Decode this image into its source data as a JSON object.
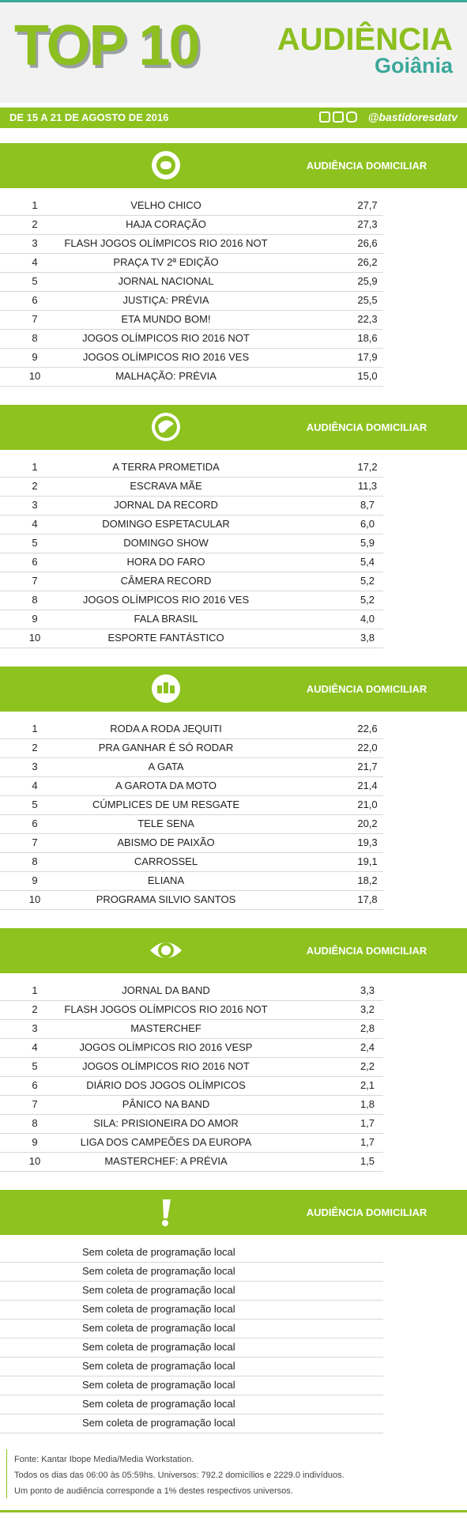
{
  "header": {
    "title": "TOP 10",
    "brand": "AUDIÊNCIA",
    "city": "Goiânia",
    "period": "DE 15 A 21 DE AGOSTO DE 2016",
    "handle": "@bastidoresdatv"
  },
  "sections": [
    {
      "heading": "AUDIÊNCIA DOMICILIAR",
      "rows": [
        [
          "1",
          "VELHO CHICO",
          "27,7"
        ],
        [
          "2",
          "HAJA CORAÇÃO",
          "27,3"
        ],
        [
          "3",
          "FLASH JOGOS OLÍMPICOS RIO 2016 NOT",
          "26,6"
        ],
        [
          "4",
          "PRAÇA TV 2ª EDIÇÃO",
          "26,2"
        ],
        [
          "5",
          "JORNAL NACIONAL",
          "25,9"
        ],
        [
          "6",
          "JUSTIÇA: PRÉVIA",
          "25,5"
        ],
        [
          "7",
          "ETA MUNDO BOM!",
          "22,3"
        ],
        [
          "8",
          "JOGOS OLÍMPICOS RIO 2016 NOT",
          "18,6"
        ],
        [
          "9",
          "JOGOS OLÍMPICOS RIO 2016 VES",
          "17,9"
        ],
        [
          "10",
          "MALHAÇÃO: PRÉVIA",
          "15,0"
        ]
      ]
    },
    {
      "heading": "AUDIÊNCIA DOMICILIAR",
      "rows": [
        [
          "1",
          "A TERRA PROMETIDA",
          "17,2"
        ],
        [
          "2",
          "ESCRAVA MÃE",
          "11,3"
        ],
        [
          "3",
          "JORNAL DA RECORD",
          "8,7"
        ],
        [
          "4",
          "DOMINGO ESPETACULAR",
          "6,0"
        ],
        [
          "5",
          "DOMINGO SHOW",
          "5,9"
        ],
        [
          "6",
          "HORA DO FARO",
          "5,4"
        ],
        [
          "7",
          "CÂMERA RECORD",
          "5,2"
        ],
        [
          "8",
          "JOGOS OLÍMPICOS RIO 2016 VES",
          "5,2"
        ],
        [
          "9",
          "FALA BRASIL",
          "4,0"
        ],
        [
          "10",
          "ESPORTE FANTÁSTICO",
          "3,8"
        ]
      ]
    },
    {
      "heading": "AUDIÊNCIA DOMICILIAR",
      "rows": [
        [
          "1",
          "RODA A RODA JEQUITI",
          "22,6"
        ],
        [
          "2",
          "PRA GANHAR É SÓ RODAR",
          "22,0"
        ],
        [
          "3",
          "A GATA",
          "21,7"
        ],
        [
          "4",
          "A GAROTA DA MOTO",
          "21,4"
        ],
        [
          "5",
          "CÚMPLICES DE UM RESGATE",
          "21,0"
        ],
        [
          "6",
          "TELE SENA",
          "20,2"
        ],
        [
          "7",
          "ABISMO DE PAIXÃO",
          "19,3"
        ],
        [
          "8",
          "CARROSSEL",
          "19,1"
        ],
        [
          "9",
          "ELIANA",
          "18,2"
        ],
        [
          "10",
          "PROGRAMA SILVIO SANTOS",
          "17,8"
        ]
      ]
    },
    {
      "heading": "AUDIÊNCIA DOMICILIAR",
      "rows": [
        [
          "1",
          "JORNAL DA BAND",
          "3,3"
        ],
        [
          "2",
          "FLASH JOGOS OLÍMPICOS RIO 2016 NOT",
          "3,2"
        ],
        [
          "3",
          "MASTERCHEF",
          "2,8"
        ],
        [
          "4",
          "JOGOS OLÍMPICOS RIO 2016 VESP",
          "2,4"
        ],
        [
          "5",
          "JOGOS OLÍMPICOS RIO 2016 NOT",
          "2,2"
        ],
        [
          "6",
          "DIÁRIO DOS JOGOS OLÍMPICOS",
          "2,1"
        ],
        [
          "7",
          "PÂNICO NA BAND",
          "1,8"
        ],
        [
          "8",
          "SILA: PRISIONEIRA DO AMOR",
          "1,7"
        ],
        [
          "9",
          "LIGA DOS CAMPEÕES DA EUROPA",
          "1,7"
        ],
        [
          "10",
          "MASTERCHEF: A PRÉVIA",
          "1,5"
        ]
      ]
    },
    {
      "heading": "AUDIÊNCIA DOMICILIAR",
      "rows": [
        [
          "Sem coleta de programação local"
        ],
        [
          "Sem coleta de programação local"
        ],
        [
          "Sem coleta de programação local"
        ],
        [
          "Sem coleta de programação local"
        ],
        [
          "Sem coleta de programação local"
        ],
        [
          "Sem coleta de programação local"
        ],
        [
          "Sem coleta de programação local"
        ],
        [
          "Sem coleta de programação local"
        ],
        [
          "Sem coleta de programação local"
        ],
        [
          "Sem coleta de programação local"
        ]
      ]
    }
  ],
  "footer": [
    "Fonte: Kantar Ibope Media/Media Workstation.",
    "Todos os dias das 06:00 às 05:59hs. Universos: 792.2 domicílios e 2229.0 indivíduos.",
    "Um ponto de audiência corresponde a 1% destes respectivos universos."
  ]
}
